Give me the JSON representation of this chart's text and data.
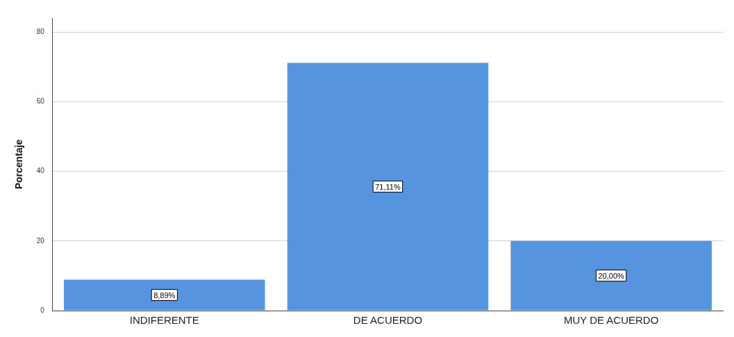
{
  "chart_data": {
    "type": "bar",
    "ylabel": "Porcentaje",
    "categories": [
      "INDIFERENTE",
      "DE ACUERDO",
      "MUY DE ACUERDO"
    ],
    "values": [
      8.89,
      71.11,
      20.0
    ],
    "value_labels": [
      "8,89%",
      "71,11%",
      "20,00%"
    ],
    "color": "#5794e0",
    "ylim": [
      0,
      84
    ],
    "yticks": [
      0,
      20,
      40,
      60,
      80
    ],
    "grid": "y",
    "legend": false
  }
}
